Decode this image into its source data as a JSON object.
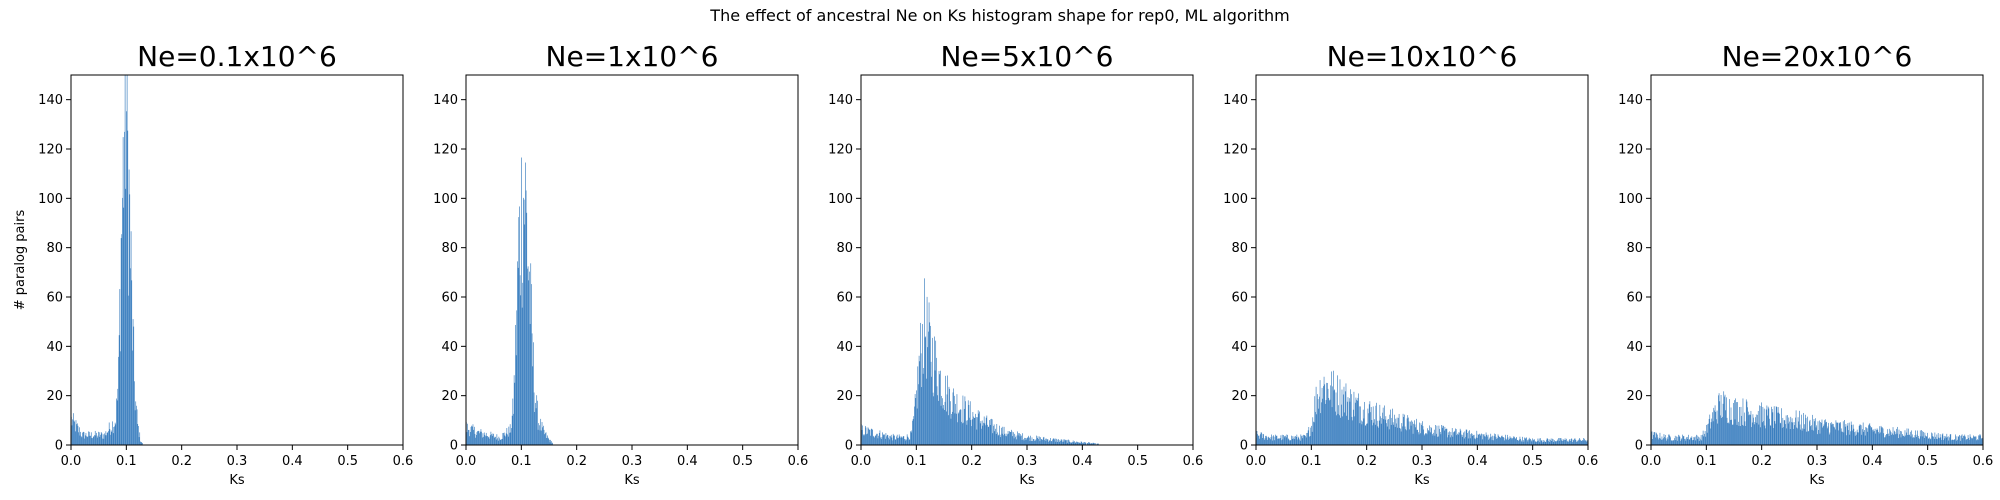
{
  "suptitle": "The effect of ancestral Ne on Ks histogram shape for rep0, ML algorithm",
  "colors": {
    "bar": "#3a7ebf",
    "axis": "#000000",
    "background": "#ffffff"
  },
  "chart_data": [
    {
      "type": "bar",
      "title": "Ne=0.1x10^6",
      "xlabel": "Ks",
      "ylabel": "# paralog pairs",
      "xlim": [
        0,
        0.6
      ],
      "ylim": [
        0,
        150
      ],
      "xticks": [
        "0.0",
        "0.1",
        "0.2",
        "0.3",
        "0.4",
        "0.5",
        "0.6"
      ],
      "yticks": [
        "0",
        "20",
        "40",
        "60",
        "80",
        "100",
        "120",
        "140"
      ],
      "bin_width": 0.0012,
      "histogram": [
        {
          "ks": 0.0,
          "count": 10
        },
        {
          "ks": 0.02,
          "count": 4
        },
        {
          "ks": 0.04,
          "count": 4
        },
        {
          "ks": 0.06,
          "count": 4
        },
        {
          "ks": 0.08,
          "count": 10
        },
        {
          "ks": 0.085,
          "count": 25
        },
        {
          "ks": 0.09,
          "count": 80
        },
        {
          "ks": 0.095,
          "count": 120
        },
        {
          "ks": 0.098,
          "count": 145
        },
        {
          "ks": 0.1,
          "count": 130
        },
        {
          "ks": 0.105,
          "count": 95
        },
        {
          "ks": 0.11,
          "count": 50
        },
        {
          "ks": 0.115,
          "count": 20
        },
        {
          "ks": 0.12,
          "count": 8
        },
        {
          "ks": 0.125,
          "count": 2
        },
        {
          "ks": 0.13,
          "count": 0
        }
      ]
    },
    {
      "type": "bar",
      "title": "Ne=1x10^6",
      "xlabel": "Ks",
      "ylabel": "",
      "xlim": [
        0,
        0.6
      ],
      "ylim": [
        0,
        150
      ],
      "xticks": [
        "0.0",
        "0.1",
        "0.2",
        "0.3",
        "0.4",
        "0.5",
        "0.6"
      ],
      "yticks": [
        "0",
        "20",
        "40",
        "60",
        "80",
        "100",
        "120",
        "140"
      ],
      "bin_width": 0.0012,
      "histogram": [
        {
          "ks": 0.0,
          "count": 7
        },
        {
          "ks": 0.02,
          "count": 5
        },
        {
          "ks": 0.04,
          "count": 4
        },
        {
          "ks": 0.06,
          "count": 3
        },
        {
          "ks": 0.08,
          "count": 6
        },
        {
          "ks": 0.085,
          "count": 15
        },
        {
          "ks": 0.09,
          "count": 45
        },
        {
          "ks": 0.095,
          "count": 80
        },
        {
          "ks": 0.1,
          "count": 95
        },
        {
          "ks": 0.105,
          "count": 104
        },
        {
          "ks": 0.11,
          "count": 85
        },
        {
          "ks": 0.115,
          "count": 60
        },
        {
          "ks": 0.12,
          "count": 35
        },
        {
          "ks": 0.125,
          "count": 18
        },
        {
          "ks": 0.13,
          "count": 10
        },
        {
          "ks": 0.14,
          "count": 5
        },
        {
          "ks": 0.15,
          "count": 2
        },
        {
          "ks": 0.16,
          "count": 0
        }
      ]
    },
    {
      "type": "bar",
      "title": "Ne=5x10^6",
      "xlabel": "Ks",
      "ylabel": "",
      "xlim": [
        0,
        0.6
      ],
      "ylim": [
        0,
        150
      ],
      "xticks": [
        "0.0",
        "0.1",
        "0.2",
        "0.3",
        "0.4",
        "0.5",
        "0.6"
      ],
      "yticks": [
        "0",
        "20",
        "40",
        "60",
        "80",
        "100",
        "120",
        "140"
      ],
      "bin_width": 0.0012,
      "histogram": [
        {
          "ks": 0.0,
          "count": 6
        },
        {
          "ks": 0.02,
          "count": 5
        },
        {
          "ks": 0.04,
          "count": 4
        },
        {
          "ks": 0.06,
          "count": 3
        },
        {
          "ks": 0.08,
          "count": 3
        },
        {
          "ks": 0.09,
          "count": 4
        },
        {
          "ks": 0.095,
          "count": 10
        },
        {
          "ks": 0.1,
          "count": 20
        },
        {
          "ks": 0.105,
          "count": 33
        },
        {
          "ks": 0.11,
          "count": 42
        },
        {
          "ks": 0.115,
          "count": 48
        },
        {
          "ks": 0.12,
          "count": 42
        },
        {
          "ks": 0.13,
          "count": 35
        },
        {
          "ks": 0.14,
          "count": 28
        },
        {
          "ks": 0.15,
          "count": 22
        },
        {
          "ks": 0.17,
          "count": 17
        },
        {
          "ks": 0.2,
          "count": 12
        },
        {
          "ks": 0.23,
          "count": 8
        },
        {
          "ks": 0.26,
          "count": 5
        },
        {
          "ks": 0.3,
          "count": 3
        },
        {
          "ks": 0.35,
          "count": 2
        },
        {
          "ks": 0.4,
          "count": 1
        },
        {
          "ks": 0.45,
          "count": 0
        }
      ]
    },
    {
      "type": "bar",
      "title": "Ne=10x10^6",
      "xlabel": "Ks",
      "ylabel": "",
      "xlim": [
        0,
        0.6
      ],
      "ylim": [
        0,
        150
      ],
      "xticks": [
        "0.0",
        "0.1",
        "0.2",
        "0.3",
        "0.4",
        "0.5",
        "0.6"
      ],
      "yticks": [
        "0",
        "20",
        "40",
        "60",
        "80",
        "100",
        "120",
        "140"
      ],
      "bin_width": 0.0012,
      "histogram": [
        {
          "ks": 0.0,
          "count": 4
        },
        {
          "ks": 0.03,
          "count": 3
        },
        {
          "ks": 0.06,
          "count": 3
        },
        {
          "ks": 0.09,
          "count": 3
        },
        {
          "ks": 0.1,
          "count": 8
        },
        {
          "ks": 0.105,
          "count": 15
        },
        {
          "ks": 0.11,
          "count": 20
        },
        {
          "ks": 0.12,
          "count": 24
        },
        {
          "ks": 0.13,
          "count": 23
        },
        {
          "ks": 0.15,
          "count": 20
        },
        {
          "ks": 0.18,
          "count": 16
        },
        {
          "ks": 0.21,
          "count": 13
        },
        {
          "ks": 0.25,
          "count": 10
        },
        {
          "ks": 0.3,
          "count": 7
        },
        {
          "ks": 0.35,
          "count": 5
        },
        {
          "ks": 0.4,
          "count": 4
        },
        {
          "ks": 0.45,
          "count": 3
        },
        {
          "ks": 0.5,
          "count": 2
        },
        {
          "ks": 0.55,
          "count": 2
        },
        {
          "ks": 0.6,
          "count": 2
        }
      ]
    },
    {
      "type": "bar",
      "title": "Ne=20x10^6",
      "xlabel": "Ks",
      "ylabel": "",
      "xlim": [
        0,
        0.6
      ],
      "ylim": [
        0,
        150
      ],
      "xticks": [
        "0.0",
        "0.1",
        "0.2",
        "0.3",
        "0.4",
        "0.5",
        "0.6"
      ],
      "yticks": [
        "0",
        "20",
        "40",
        "60",
        "80",
        "100",
        "120",
        "140"
      ],
      "bin_width": 0.0012,
      "histogram": [
        {
          "ks": 0.0,
          "count": 4
        },
        {
          "ks": 0.03,
          "count": 3
        },
        {
          "ks": 0.06,
          "count": 3
        },
        {
          "ks": 0.09,
          "count": 3
        },
        {
          "ks": 0.1,
          "count": 6
        },
        {
          "ks": 0.11,
          "count": 11
        },
        {
          "ks": 0.12,
          "count": 15
        },
        {
          "ks": 0.13,
          "count": 16
        },
        {
          "ks": 0.15,
          "count": 14
        },
        {
          "ks": 0.18,
          "count": 13
        },
        {
          "ks": 0.22,
          "count": 11
        },
        {
          "ks": 0.26,
          "count": 10
        },
        {
          "ks": 0.3,
          "count": 8
        },
        {
          "ks": 0.35,
          "count": 7
        },
        {
          "ks": 0.4,
          "count": 6
        },
        {
          "ks": 0.45,
          "count": 5
        },
        {
          "ks": 0.5,
          "count": 4
        },
        {
          "ks": 0.55,
          "count": 3
        },
        {
          "ks": 0.6,
          "count": 3
        }
      ]
    }
  ]
}
